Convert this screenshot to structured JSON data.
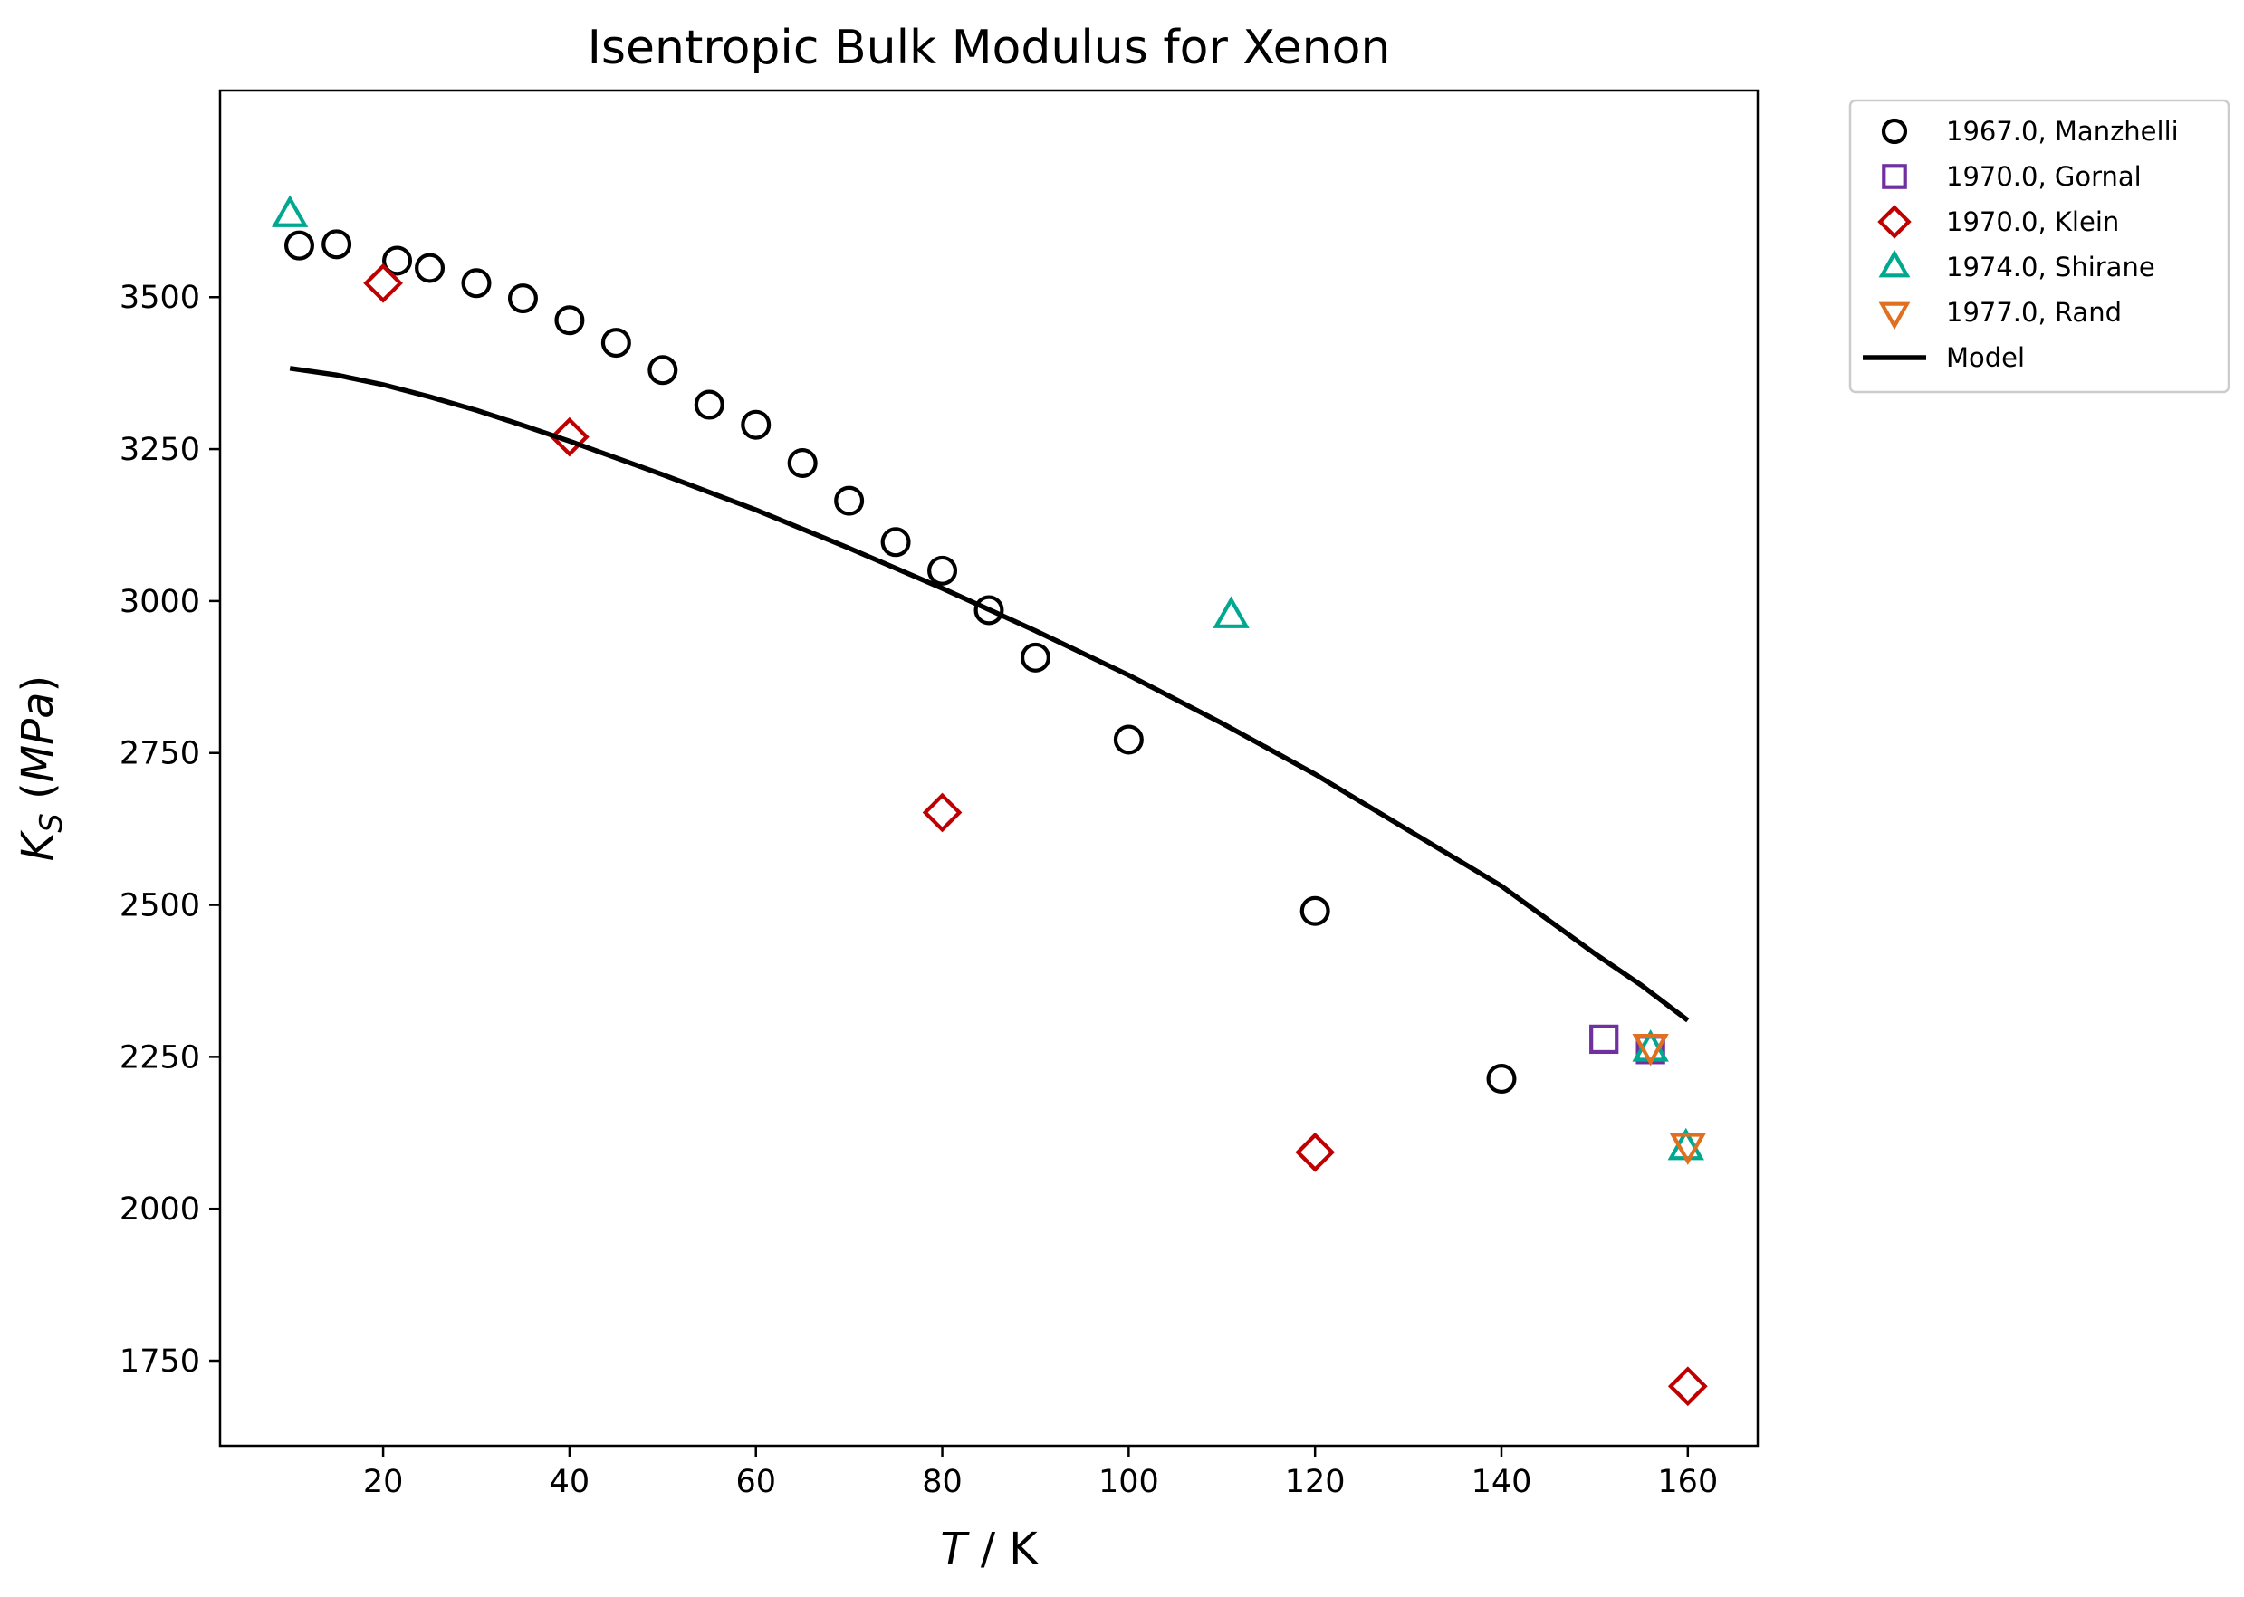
{
  "chart_data": {
    "type": "scatter",
    "title": "Isentropic Bulk Modulus for Xenon",
    "xlabel": {
      "symbol": "T",
      "unit": " / K"
    },
    "ylabel": {
      "symbol": "K",
      "subscript": "S",
      "unit": "MPa"
    },
    "xlim": [
      2.5,
      167.5
    ],
    "ylim": [
      1610,
      3840
    ],
    "xticks": [
      20,
      40,
      60,
      80,
      100,
      120,
      140,
      160
    ],
    "yticks": [
      1750,
      2000,
      2250,
      2500,
      2750,
      3000,
      3250,
      3500
    ],
    "legend": "outside-right-top",
    "grid": false,
    "series": [
      {
        "name": "1967.0, Manzhelli",
        "marker": "circle",
        "color": "#000000",
        "points": [
          [
            11,
            3585
          ],
          [
            15,
            3587
          ],
          [
            21.5,
            3560
          ],
          [
            25,
            3548
          ],
          [
            30,
            3523
          ],
          [
            35,
            3498
          ],
          [
            40,
            3462
          ],
          [
            45,
            3425
          ],
          [
            50,
            3380
          ],
          [
            55,
            3323
          ],
          [
            60,
            3290
          ],
          [
            65,
            3227
          ],
          [
            70,
            3165
          ],
          [
            75,
            3097
          ],
          [
            80,
            3050
          ],
          [
            85,
            2985
          ],
          [
            90,
            2907
          ],
          [
            100,
            2772
          ],
          [
            120,
            2490
          ],
          [
            140,
            2214
          ]
        ]
      },
      {
        "name": "1970.0, Gornal",
        "marker": "square",
        "color": "#7030a0",
        "points": [
          [
            151,
            2279
          ],
          [
            156,
            2262
          ]
        ]
      },
      {
        "name": "1970.0, Klein",
        "marker": "diamond",
        "color": "#c00000",
        "points": [
          [
            20,
            3523
          ],
          [
            40,
            3270
          ],
          [
            80,
            2652
          ],
          [
            120,
            2093
          ],
          [
            160,
            1708
          ]
        ]
      },
      {
        "name": "1974.0, Shirane",
        "marker": "triangle-up",
        "color": "#00a88f",
        "points": [
          [
            10,
            3635
          ],
          [
            111,
            2975
          ],
          [
            156,
            2262
          ],
          [
            159.8,
            2100
          ]
        ]
      },
      {
        "name": "1977.0, Rand",
        "marker": "triangle-down",
        "color": "#e07020",
        "points": [
          [
            156,
            2268
          ],
          [
            160,
            2105
          ]
        ]
      },
      {
        "name": "Model",
        "marker": "line",
        "color": "#000000",
        "points": [
          [
            10,
            3383
          ],
          [
            15,
            3372
          ],
          [
            20,
            3356
          ],
          [
            25,
            3336
          ],
          [
            30,
            3314
          ],
          [
            35,
            3289
          ],
          [
            40,
            3263
          ],
          [
            50,
            3208
          ],
          [
            60,
            3150
          ],
          [
            70,
            3087
          ],
          [
            80,
            3021
          ],
          [
            90,
            2951
          ],
          [
            100,
            2878
          ],
          [
            110,
            2799
          ],
          [
            120,
            2715
          ],
          [
            130,
            2623
          ],
          [
            140,
            2531
          ],
          [
            150,
            2420
          ],
          [
            155,
            2368
          ],
          [
            160,
            2310
          ]
        ]
      }
    ]
  }
}
